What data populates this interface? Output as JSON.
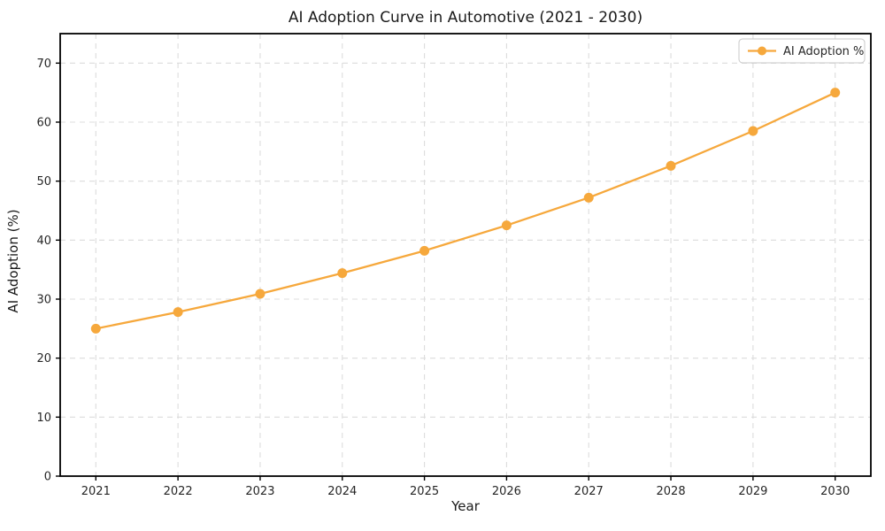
{
  "title": "AI Adoption Curve in Automotive (2021 - 2030)",
  "colors": {
    "line": "#F6A83C",
    "marker": "#F6A83C",
    "grid": "#DCDCDC",
    "spine": "#000000",
    "tick_text": "#262626",
    "title_text": "#1a1a1a",
    "legend_border": "#C8C8C8",
    "legend_bg": "#FFFFFF",
    "background": "#FFFFFF"
  },
  "legend": {
    "label": "AI Adoption %",
    "position": "upper right"
  },
  "chart_data": {
    "type": "line",
    "title": "AI Adoption Curve in Automotive (2021 - 2030)",
    "xlabel": "Year",
    "ylabel": "AI Adoption (%)",
    "x": [
      2021,
      2022,
      2023,
      2024,
      2025,
      2026,
      2027,
      2028,
      2029,
      2030
    ],
    "x_tick_labels": [
      "2021",
      "2022",
      "2023",
      "2024",
      "2025",
      "2026",
      "2027",
      "2028",
      "2029",
      "2030"
    ],
    "series": [
      {
        "name": "AI Adoption %",
        "values": [
          25.0,
          27.8,
          30.9,
          34.4,
          38.2,
          42.5,
          47.2,
          52.6,
          58.5,
          65.0
        ]
      }
    ],
    "ylim": [
      0,
      75
    ],
    "yticks": [
      0,
      10,
      20,
      30,
      40,
      50,
      60,
      70
    ],
    "grid": true,
    "grid_style": "dashed",
    "marker": "o",
    "legend_position": "upper right"
  }
}
